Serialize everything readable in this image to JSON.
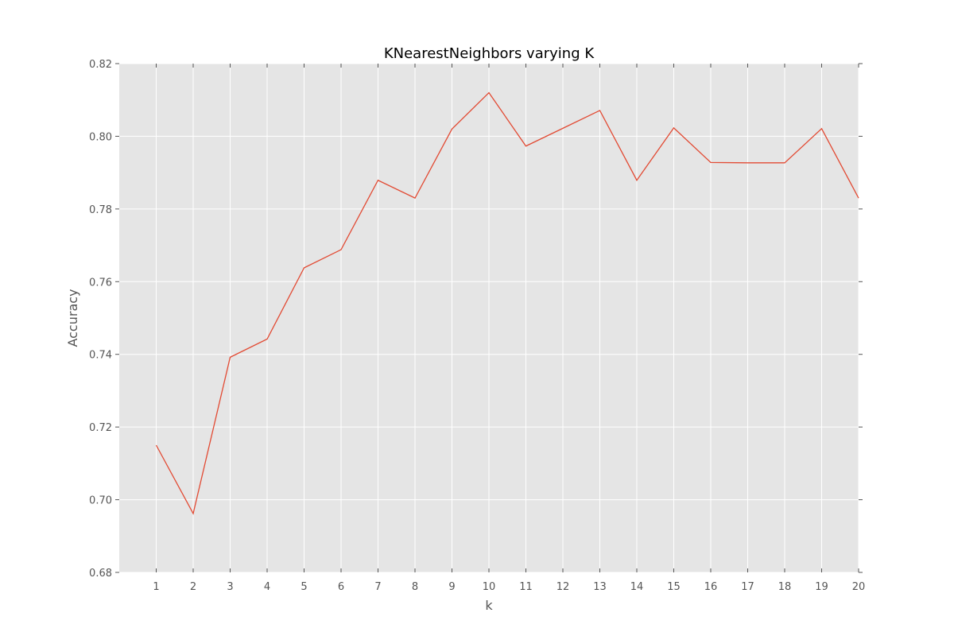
{
  "chart_data": {
    "type": "line",
    "title": "KNearestNeighbors varying K",
    "xlabel": "k",
    "ylabel": "Accuracy",
    "x": [
      1,
      2,
      3,
      4,
      5,
      6,
      7,
      8,
      9,
      10,
      11,
      12,
      13,
      14,
      15,
      16,
      17,
      18,
      19,
      20
    ],
    "xticks": [
      "1",
      "2",
      "3",
      "4",
      "5",
      "6",
      "7",
      "8",
      "9",
      "10",
      "11",
      "12",
      "13",
      "14",
      "15",
      "16",
      "17",
      "18",
      "19",
      "20"
    ],
    "yticks": [
      "0.68",
      "0.70",
      "0.72",
      "0.74",
      "0.76",
      "0.78",
      "0.80",
      "0.82"
    ],
    "xlim": [
      0,
      20
    ],
    "ylim": [
      0.68,
      0.82
    ],
    "grid": true,
    "series": [
      {
        "values": [
          0.715,
          0.6962,
          0.7392,
          0.7442,
          0.7638,
          0.7688,
          0.7879,
          0.783,
          0.802,
          0.812,
          0.7973,
          0.8022,
          0.8071,
          0.7879,
          0.8023,
          0.7928,
          0.7927,
          0.7927,
          0.8021,
          0.783
        ],
        "color": "#e24a33"
      }
    ],
    "colors": {
      "plot_background": "#e5e5e5",
      "grid": "#ffffff",
      "tick_mark": "#555555"
    }
  }
}
